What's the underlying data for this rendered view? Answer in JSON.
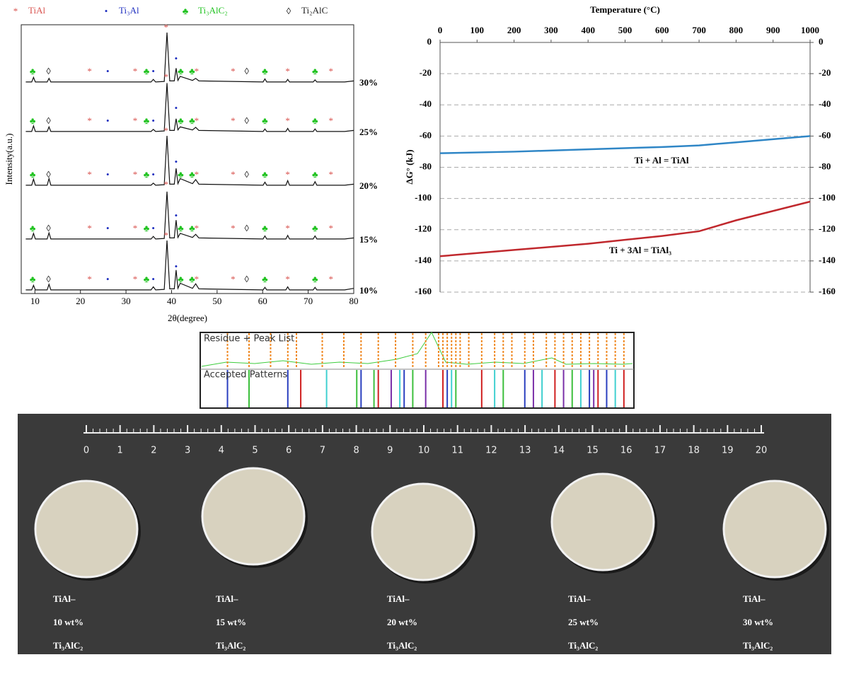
{
  "chart_data": [
    {
      "type": "xrd",
      "xlabel": "2θ(degree)",
      "ylabel": "Intensity(a.u.)",
      "xlim": [
        7,
        80
      ],
      "xticks": [
        10,
        20,
        30,
        40,
        50,
        60,
        70,
        80
      ],
      "legend": [
        {
          "name": "TiAl",
          "symbol": "*",
          "color": "#d9534f",
          "positions": [
            22,
            32,
            38.8,
            45.5,
            53.5,
            65.5,
            75
          ]
        },
        {
          "name": "Ti₃Al",
          "symbol": "•",
          "color": "#1f2fbf",
          "positions": [
            26,
            36,
            41
          ]
        },
        {
          "name": "Ti₃AlC₂",
          "symbol": "♣",
          "color": "#22c322",
          "positions": [
            9.5,
            34.5,
            42,
            44.5,
            60.5,
            71.5
          ]
        },
        {
          "name": "Ti₂AlC",
          "symbol": "◊",
          "color": "#222222",
          "positions": [
            13,
            56.5
          ]
        }
      ],
      "x": [
        8,
        9.3,
        9.7,
        10.1,
        12.7,
        13.1,
        13.5,
        35.5,
        36,
        36.5,
        38.4,
        39,
        39.6,
        40.6,
        41,
        41.4,
        41.9,
        44.6,
        45.3,
        46,
        60.1,
        60.5,
        60.9,
        65.1,
        65.5,
        65.9,
        71.1,
        71.5,
        71.9,
        78,
        80
      ],
      "series": [
        {
          "name": "30%",
          "color": "#111111",
          "values": [
            3,
            3,
            12,
            3,
            3,
            10,
            3,
            3,
            8,
            3,
            4,
            100,
            5,
            5,
            30,
            6,
            14,
            6,
            10,
            5,
            3,
            9,
            3,
            3,
            8,
            3,
            3,
            7,
            3,
            3,
            5
          ]
        },
        {
          "name": "25%",
          "color": "#111111",
          "values": [
            3,
            3,
            14,
            3,
            3,
            12,
            3,
            3,
            7,
            3,
            4,
            98,
            5,
            5,
            28,
            6,
            12,
            6,
            11,
            5,
            3,
            8,
            3,
            3,
            9,
            3,
            3,
            8,
            3,
            3,
            5
          ]
        },
        {
          "name": "20%",
          "color": "#111111",
          "values": [
            3,
            3,
            15,
            3,
            3,
            16,
            3,
            3,
            7,
            3,
            4,
            100,
            5,
            5,
            36,
            6,
            16,
            6,
            14,
            5,
            3,
            9,
            3,
            3,
            12,
            3,
            3,
            10,
            3,
            3,
            5
          ]
        },
        {
          "name": "15%",
          "color": "#111111",
          "values": [
            3,
            3,
            14,
            3,
            3,
            15,
            3,
            3,
            8,
            3,
            4,
            96,
            5,
            5,
            40,
            6,
            14,
            6,
            12,
            5,
            3,
            9,
            3,
            3,
            10,
            3,
            3,
            9,
            3,
            3,
            5
          ]
        },
        {
          "name": "10%",
          "color": "#111111",
          "values": [
            3,
            3,
            12,
            3,
            3,
            14,
            3,
            3,
            9,
            3,
            4,
            100,
            5,
            5,
            42,
            6,
            16,
            6,
            15,
            5,
            3,
            8,
            3,
            3,
            9,
            3,
            3,
            8,
            3,
            3,
            6
          ]
        }
      ]
    },
    {
      "type": "line",
      "title": "Temperature (°C)",
      "ylabel": "ΔG° (kJ)",
      "grid": true,
      "xlim": [
        0,
        1000
      ],
      "xticks": [
        0,
        100,
        200,
        300,
        400,
        500,
        600,
        700,
        800,
        900,
        1000
      ],
      "ylim": [
        -160,
        0
      ],
      "yticks": [
        0,
        -20,
        -40,
        -60,
        -80,
        -100,
        -120,
        -140,
        -160
      ],
      "y2lim": [
        -160,
        0
      ],
      "y2ticks": [
        0,
        -20,
        -40,
        -60,
        -80,
        -100,
        -120,
        -140,
        -160
      ],
      "x": [
        0,
        200,
        400,
        600,
        700,
        800,
        1000
      ],
      "series": [
        {
          "name": "Ti + Al = TiAl",
          "color": "#2f86c6",
          "values": [
            -71,
            -70,
            -68.5,
            -67,
            -66,
            -64,
            -60
          ]
        },
        {
          "name": "Ti + 3Al = TiAl₃",
          "color": "#c0282d",
          "values": [
            -137,
            -133,
            -129,
            -124,
            -121,
            -114,
            -102
          ]
        }
      ]
    },
    {
      "type": "stick",
      "xlim": [
        0,
        100
      ],
      "panels": [
        "Residue + Peak List",
        "Accepted Patterns"
      ],
      "peak_list": {
        "color": "#f08a24",
        "positions": [
          6,
          11,
          16,
          20,
          22,
          28,
          33,
          37,
          41,
          45,
          49,
          52,
          55,
          56,
          57,
          58,
          59,
          60,
          62,
          65,
          68,
          70,
          72,
          75,
          77,
          80,
          82,
          84,
          86,
          88,
          90,
          92,
          94,
          96,
          98
        ]
      },
      "patterns": [
        {
          "color": "#2a3fbf",
          "positions": [
            6,
            20,
            37,
            47,
            57,
            75,
            90,
            94
          ]
        },
        {
          "color": "#3cbf3c",
          "positions": [
            11,
            36,
            40,
            49,
            59,
            70,
            86
          ]
        },
        {
          "color": "#d02020",
          "positions": [
            23,
            41,
            56,
            65,
            82,
            92,
            98
          ]
        },
        {
          "color": "#40d0d0",
          "positions": [
            29,
            46,
            58,
            68,
            79,
            88,
            96
          ]
        },
        {
          "color": "#7a2fa8",
          "positions": [
            44,
            52,
            77,
            84,
            91
          ]
        }
      ]
    }
  ],
  "photo": {
    "ruler": [
      0,
      1,
      2,
      3,
      4,
      5,
      6,
      7,
      8,
      9,
      10,
      11,
      12,
      13,
      14,
      15,
      16,
      17,
      18,
      19,
      20
    ],
    "samples": [
      [
        "TiAl–",
        "10 wt%",
        "Ti₃AlC₂"
      ],
      [
        "TiAl–",
        "15 wt%",
        "Ti₃AlC₂"
      ],
      [
        "TiAl–",
        "20 wt%",
        "Ti₃AlC₂"
      ],
      [
        "TiAl–",
        "25 wt%",
        "Ti₃AlC₂"
      ],
      [
        "TiAl–",
        "30 wt%",
        "Ti₃AlC₂"
      ]
    ]
  }
}
